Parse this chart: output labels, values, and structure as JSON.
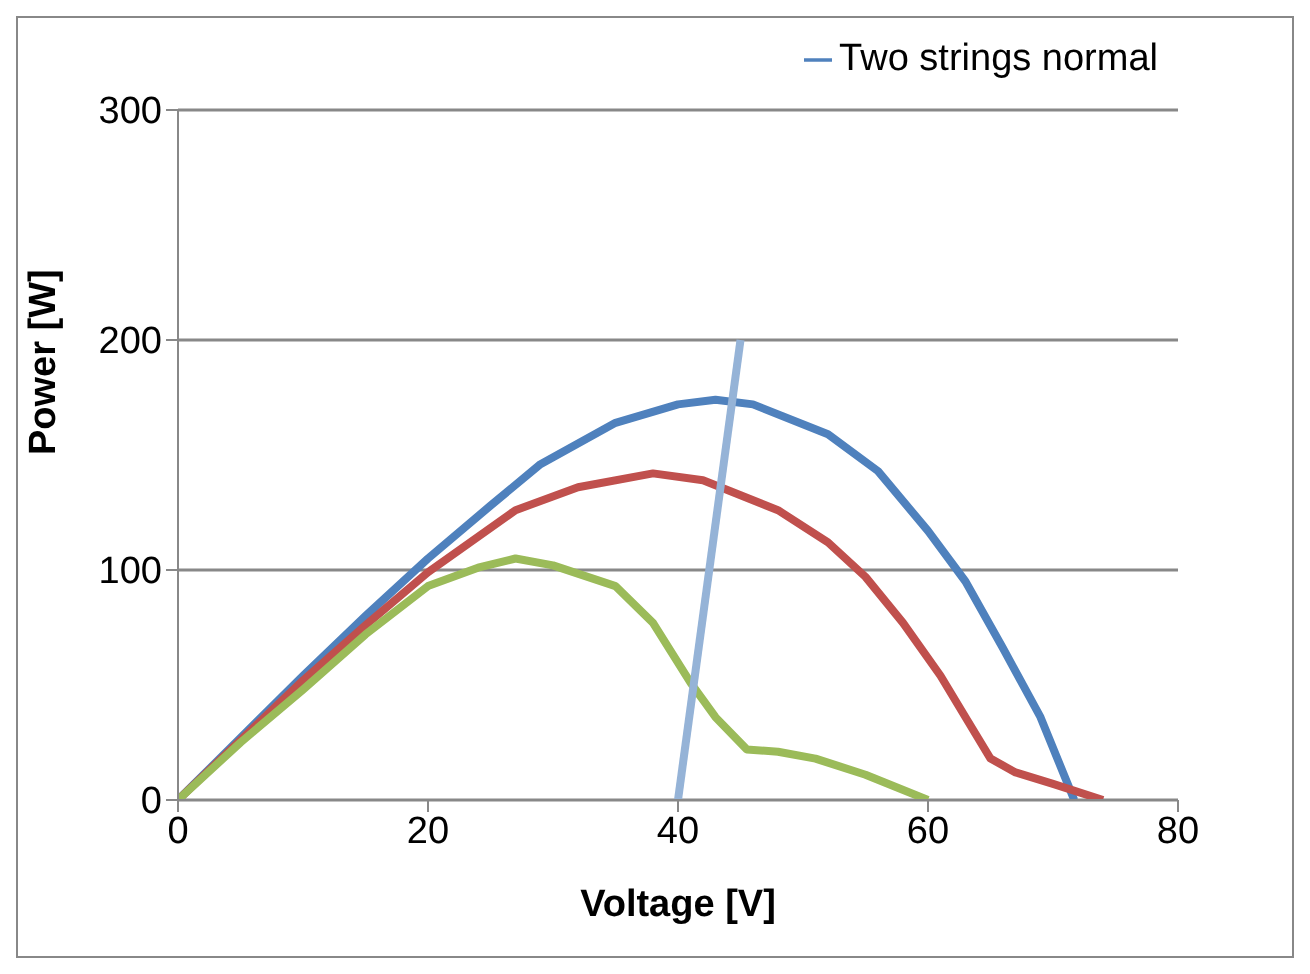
{
  "chart_data": {
    "type": "line",
    "xlabel": "Voltage [V]",
    "ylabel": "Power [W]",
    "xlim": [
      0,
      80
    ],
    "xticks": [
      0,
      20,
      40,
      60,
      80
    ],
    "ylim": [
      0,
      300
    ],
    "yticks": [
      0,
      100,
      200,
      300
    ],
    "grid": "y",
    "legend": "top",
    "marker": "none",
    "line_style": "solid",
    "series": [
      {
        "name": "Two strings normal",
        "color": "#4f81bd",
        "x": [
          0,
          5,
          10,
          15,
          20,
          25,
          29,
          35,
          40,
          43,
          46,
          52,
          56,
          60,
          63,
          66,
          69,
          71.7
        ],
        "values": [
          0,
          27,
          54,
          80,
          105,
          128,
          146,
          164,
          172,
          174,
          172,
          159,
          143,
          117,
          95,
          66,
          36,
          0
        ]
      },
      {
        "color": "#c0504d",
        "x": [
          0,
          5,
          10,
          15,
          20,
          27,
          32,
          38,
          42,
          48,
          52,
          55,
          58,
          61,
          63,
          65,
          67,
          70,
          74
        ],
        "values": [
          0,
          26,
          52,
          76,
          99,
          126,
          136,
          142,
          139,
          126,
          112,
          97,
          77,
          54,
          36,
          18,
          12,
          7,
          0
        ]
      },
      {
        "color": "#9bbb59",
        "x": [
          0,
          5,
          10,
          15,
          20,
          24,
          27,
          30,
          35,
          38,
          41,
          43,
          45.5,
          48,
          51,
          55,
          60
        ],
        "values": [
          0,
          25,
          48,
          72,
          93,
          101,
          105,
          102,
          93,
          77,
          51,
          36,
          22,
          21,
          18,
          11,
          0
        ]
      },
      {
        "color": "#95b3d7",
        "x": [
          40,
          45
        ],
        "values": [
          0,
          200
        ]
      }
    ]
  }
}
